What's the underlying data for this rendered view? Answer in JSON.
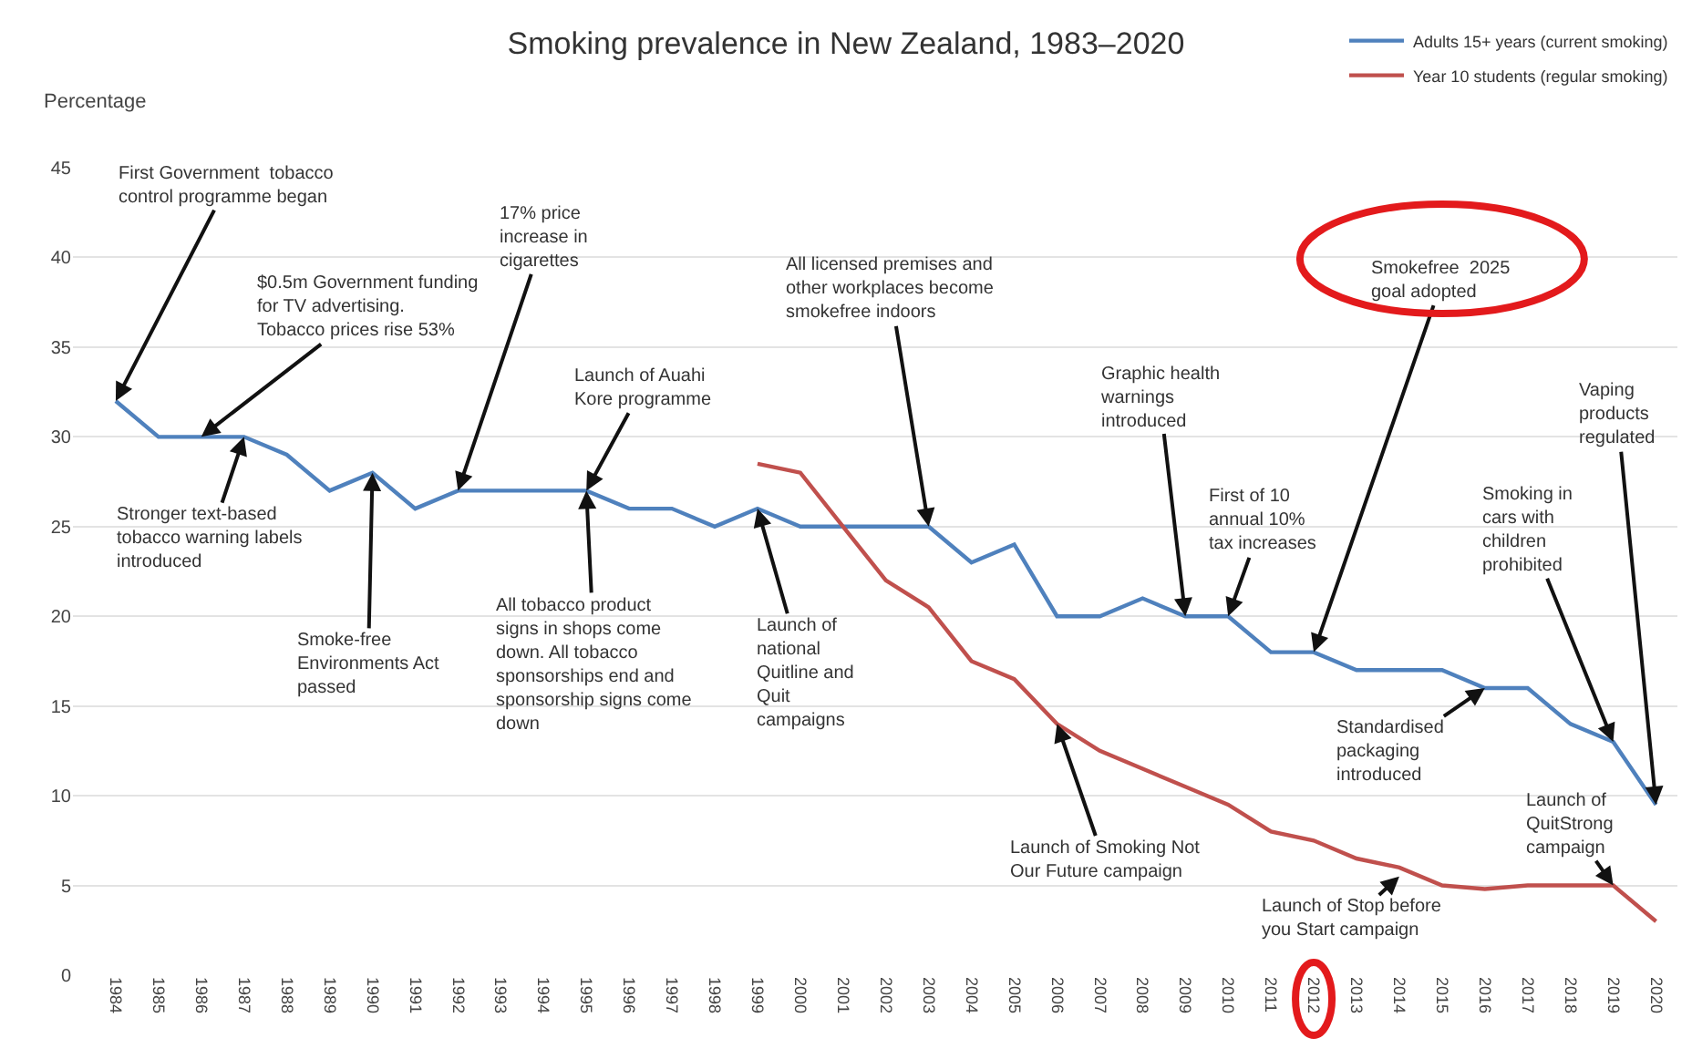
{
  "chart_data": {
    "type": "line",
    "title": "Smoking prevalence in New Zealand, 1983–2020",
    "ylabel": "Percentage",
    "categories": [
      "1984",
      "1985",
      "1986",
      "1987",
      "1988",
      "1989",
      "1990",
      "1991",
      "1992",
      "1993",
      "1994",
      "1995",
      "1996",
      "1997",
      "1998",
      "1999",
      "2000",
      "2001",
      "2002",
      "2003",
      "2004",
      "2005",
      "2006",
      "2007",
      "2008",
      "2009",
      "2010",
      "2011",
      "2012",
      "2013",
      "2014",
      "2015",
      "2016",
      "2017",
      "2018",
      "2019",
      "2020"
    ],
    "series": [
      {
        "name": "Adults 15+ years (current smoking)",
        "color": "#4f81bd",
        "values": [
          32,
          30,
          30,
          30,
          29,
          27,
          28,
          26,
          27,
          27,
          27,
          27,
          26,
          26,
          25,
          26,
          25,
          25,
          25,
          25,
          23,
          24,
          20,
          20,
          21,
          20,
          20,
          18,
          18,
          17,
          17,
          17,
          16,
          16,
          14,
          13,
          9.5
        ]
      },
      {
        "name": "Year 10 students (regular smoking)",
        "color": "#c0504d",
        "values": [
          null,
          null,
          null,
          null,
          null,
          null,
          null,
          null,
          null,
          null,
          null,
          null,
          null,
          null,
          null,
          28.5,
          28,
          25,
          22,
          20.5,
          17.5,
          16.5,
          14,
          12.5,
          11.5,
          10.5,
          9.5,
          8,
          7.5,
          6.5,
          6,
          5,
          4.8,
          5,
          5,
          5,
          3
        ]
      }
    ],
    "ylim": [
      0,
      45
    ],
    "yticks": [
      0,
      5,
      10,
      15,
      20,
      25,
      30,
      35,
      40,
      45
    ],
    "grid": "y",
    "legend": "top right",
    "marker": "none",
    "line_style": "solid",
    "annotations": [
      {
        "text": "First Government  tobacco control programme began",
        "x": "1984",
        "y": 32
      },
      {
        "text": "$0.5m Government funding for TV advertising. Tobacco prices rise 53%",
        "x": "1986",
        "y": 30
      },
      {
        "text": "Stronger text-based tobacco warning labels introduced",
        "x": "1987",
        "y": 30
      },
      {
        "text": "17% price increase in cigarettes",
        "x": "1992",
        "y": 27
      },
      {
        "text": "Smoke-free Environments Act passed",
        "x": "1990",
        "y": 28
      },
      {
        "text": "Launch of Auahi Kore programme",
        "x": "1995",
        "y": 27
      },
      {
        "text": "All tobacco product signs in shops come down. All tobacco sponsorships end and sponsorship signs come down",
        "x": "1995",
        "y": 27
      },
      {
        "text": "All licensed premises and other workplaces become smokefree indoors",
        "x": "2003",
        "y": 25
      },
      {
        "text": "Launch of national Quitline and Quit campaigns",
        "x": "1999",
        "y": 26
      },
      {
        "text": "Graphic health warnings introduced",
        "x": "2009",
        "y": 20
      },
      {
        "text": "First of 10 annual 10% tax increases",
        "x": "2010",
        "y": 20
      },
      {
        "text": "Smokefree  2025 goal adopted",
        "x": "2012",
        "y": 18
      },
      {
        "text": "Smoking in cars with children prohibited",
        "x": "2019",
        "y": 13
      },
      {
        "text": "Vaping products regulated",
        "x": "2020",
        "y": 9.5
      },
      {
        "text": "Standardised packaging introduced",
        "x": "2016",
        "y": 16
      },
      {
        "text": "Launch of QuitStrong campaign",
        "x": "2019",
        "y": 5
      },
      {
        "text": "Launch of Smoking Not Our Future campaign",
        "x": "2006",
        "y": 14
      },
      {
        "text": "Launch of Stop before you Start campaign",
        "x": "2014",
        "y": 5.5
      }
    ]
  }
}
